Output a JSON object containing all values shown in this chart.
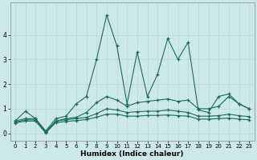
{
  "xlabel": "Humidex (Indice chaleur)",
  "background_color": "#cce8ea",
  "grid_color": "#b8d8da",
  "line_color": "#1a6b5e",
  "xlim": [
    -0.5,
    23.5
  ],
  "ylim": [
    -0.3,
    5.3
  ],
  "yticks": [
    0,
    1,
    2,
    3,
    4
  ],
  "xticks": [
    0,
    1,
    2,
    3,
    4,
    5,
    6,
    7,
    8,
    9,
    10,
    11,
    12,
    13,
    14,
    15,
    16,
    17,
    18,
    19,
    20,
    21,
    22,
    23
  ],
  "series": [
    {
      "x": [
        0,
        1,
        2,
        3,
        4,
        5,
        6,
        7,
        8,
        9,
        10,
        11,
        12,
        13,
        14,
        15,
        16,
        17,
        18,
        19,
        20,
        21,
        22,
        23
      ],
      "y": [
        0.5,
        0.9,
        0.6,
        0.1,
        0.6,
        0.7,
        1.2,
        1.5,
        3.0,
        4.8,
        3.55,
        1.2,
        3.3,
        1.5,
        2.4,
        3.85,
        3.0,
        3.7,
        0.95,
        0.85,
        1.5,
        1.6,
        1.2,
        1.0
      ]
    },
    {
      "x": [
        0,
        1,
        2,
        3,
        4,
        5,
        6,
        7,
        8,
        9,
        10,
        11,
        12,
        13,
        14,
        15,
        16,
        17,
        18,
        19,
        20,
        21,
        22,
        23
      ],
      "y": [
        0.5,
        0.6,
        0.6,
        0.05,
        0.5,
        0.6,
        0.65,
        0.85,
        1.25,
        1.5,
        1.35,
        1.1,
        1.25,
        1.3,
        1.35,
        1.4,
        1.3,
        1.35,
        1.0,
        1.0,
        1.1,
        1.5,
        1.2,
        1.0
      ]
    },
    {
      "x": [
        0,
        1,
        2,
        3,
        4,
        5,
        6,
        7,
        8,
        9,
        10,
        11,
        12,
        13,
        14,
        15,
        16,
        17,
        18,
        19,
        20,
        21,
        22,
        23
      ],
      "y": [
        0.45,
        0.55,
        0.55,
        0.05,
        0.5,
        0.55,
        0.6,
        0.65,
        0.8,
        1.0,
        0.95,
        0.85,
        0.88,
        0.9,
        0.9,
        0.95,
        0.9,
        0.85,
        0.7,
        0.7,
        0.72,
        0.78,
        0.72,
        0.68
      ]
    },
    {
      "x": [
        0,
        1,
        2,
        3,
        4,
        5,
        6,
        7,
        8,
        9,
        10,
        11,
        12,
        13,
        14,
        15,
        16,
        17,
        18,
        19,
        20,
        21,
        22,
        23
      ],
      "y": [
        0.42,
        0.5,
        0.5,
        0.02,
        0.44,
        0.48,
        0.52,
        0.56,
        0.66,
        0.78,
        0.78,
        0.7,
        0.7,
        0.73,
        0.73,
        0.75,
        0.72,
        0.7,
        0.58,
        0.58,
        0.6,
        0.62,
        0.58,
        0.55
      ]
    }
  ]
}
